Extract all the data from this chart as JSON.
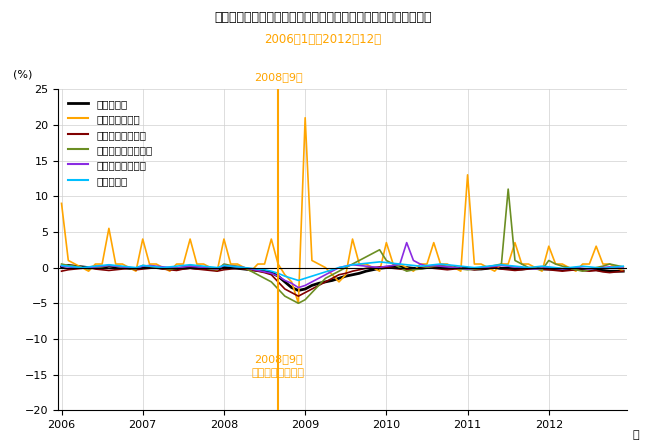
{
  "title": "《参考》主な産業別現金給与総額（前年同月比）　就業形態別計",
  "subtitle": "2006年1月～2012年12月",
  "ylabel": "(%)",
  "xlabel_suffix": "年",
  "ylim": [
    -20.0,
    25.0
  ],
  "yticks": [
    -20.0,
    -15.0,
    -10.0,
    -5.0,
    0.0,
    5.0,
    10.0,
    15.0,
    20.0,
    25.0
  ],
  "vline_label_top": "2008年9月",
  "vline_label_bottom": "リーマンショック",
  "vline_color": "#FFA500",
  "series_colors": [
    "#000000",
    "#FFA500",
    "#800000",
    "#6B8E23",
    "#8A2BE2",
    "#00BFFF"
  ],
  "series_names": [
    "調査産業計",
    "金融業，保険業",
    "飲食サービス業等",
    "生活関連サービス等",
    "教育，学習支援業",
    "医療，福祉"
  ],
  "background_color": "#ffffff",
  "data": {
    "調査産業計": [
      0.1,
      0.3,
      0.2,
      0.1,
      0.0,
      0.1,
      0.0,
      0.2,
      0.1,
      0.0,
      -0.1,
      -0.2,
      0.1,
      0.1,
      0.0,
      -0.1,
      -0.1,
      -0.2,
      -0.1,
      0.0,
      -0.1,
      -0.1,
      -0.2,
      -0.3,
      0.1,
      0.0,
      -0.1,
      -0.2,
      -0.3,
      -0.4,
      -0.5,
      -0.7,
      -1.2,
      -2.0,
      -2.8,
      -3.2,
      -3.0,
      -2.5,
      -2.2,
      -2.0,
      -1.8,
      -1.5,
      -1.2,
      -1.0,
      -0.8,
      -0.5,
      -0.3,
      -0.1,
      0.0,
      0.1,
      0.1,
      0.0,
      -0.1,
      -0.1,
      0.0,
      0.1,
      0.1,
      0.0,
      0.0,
      -0.1,
      -0.1,
      -0.2,
      -0.2,
      -0.1,
      0.0,
      -0.1,
      -0.1,
      -0.2,
      -0.2,
      -0.1,
      -0.1,
      -0.2,
      -0.2,
      -0.2,
      -0.3,
      -0.2,
      -0.2,
      -0.3,
      -0.3,
      -0.3,
      -0.4,
      -0.5,
      -0.5,
      -0.5
    ],
    "金融業，保険業": [
      9.0,
      1.0,
      0.5,
      0.0,
      -0.5,
      0.5,
      0.5,
      5.5,
      0.5,
      0.5,
      0.0,
      -0.5,
      4.0,
      0.5,
      0.5,
      0.0,
      -0.5,
      0.5,
      0.5,
      4.0,
      0.5,
      0.5,
      0.0,
      -0.5,
      4.0,
      0.5,
      0.5,
      0.0,
      -0.5,
      0.5,
      0.5,
      4.0,
      0.5,
      -1.0,
      -2.0,
      -5.0,
      21.0,
      1.0,
      0.5,
      0.0,
      -1.0,
      -2.0,
      -1.0,
      4.0,
      0.5,
      0.5,
      0.0,
      -0.5,
      3.5,
      0.5,
      0.5,
      0.0,
      -0.5,
      0.5,
      0.5,
      3.5,
      0.5,
      0.5,
      0.0,
      -0.5,
      13.0,
      0.5,
      0.5,
      0.0,
      -0.5,
      0.5,
      0.5,
      3.5,
      0.5,
      0.5,
      0.0,
      -0.5,
      3.0,
      0.5,
      0.5,
      0.0,
      -0.5,
      0.5,
      0.5,
      3.0,
      0.5,
      0.5,
      0.0,
      -0.5
    ],
    "飲食サービス業等": [
      -0.5,
      -0.3,
      -0.2,
      -0.1,
      0.0,
      -0.2,
      -0.3,
      -0.4,
      -0.3,
      -0.2,
      -0.1,
      -0.3,
      -0.2,
      -0.1,
      0.0,
      -0.2,
      -0.3,
      -0.4,
      -0.2,
      -0.1,
      -0.2,
      -0.3,
      -0.4,
      -0.5,
      -0.3,
      -0.2,
      -0.1,
      -0.2,
      -0.3,
      -0.5,
      -0.7,
      -1.0,
      -2.0,
      -3.0,
      -3.5,
      -4.0,
      -3.5,
      -3.0,
      -2.5,
      -2.0,
      -1.5,
      -1.0,
      -0.8,
      -0.5,
      -0.3,
      -0.1,
      0.0,
      0.1,
      0.0,
      -0.1,
      -0.2,
      -0.3,
      -0.2,
      -0.1,
      0.0,
      -0.1,
      -0.2,
      -0.3,
      -0.2,
      -0.1,
      -0.2,
      -0.3,
      -0.2,
      -0.1,
      0.0,
      -0.2,
      -0.3,
      -0.4,
      -0.3,
      -0.2,
      -0.1,
      -0.2,
      -0.3,
      -0.4,
      -0.5,
      -0.4,
      -0.3,
      -0.4,
      -0.5,
      -0.4,
      -0.6,
      -0.7,
      -0.6,
      -0.5
    ],
    "生活関連サービス等": [
      0.5,
      0.3,
      0.2,
      0.0,
      -0.2,
      0.0,
      0.1,
      0.3,
      0.2,
      0.0,
      -0.1,
      -0.2,
      0.3,
      0.2,
      0.1,
      -0.1,
      -0.2,
      -0.1,
      0.1,
      0.3,
      0.2,
      0.0,
      -0.2,
      -0.3,
      0.5,
      0.3,
      0.2,
      0.0,
      -0.5,
      -1.0,
      -1.5,
      -2.0,
      -3.0,
      -4.0,
      -4.5,
      -5.0,
      -4.5,
      -3.5,
      -2.5,
      -1.5,
      -1.0,
      -0.5,
      0.0,
      0.5,
      1.0,
      1.5,
      2.0,
      2.5,
      1.0,
      0.5,
      0.0,
      -0.5,
      -0.3,
      -0.2,
      0.0,
      0.2,
      0.3,
      0.2,
      0.0,
      -0.2,
      -0.3,
      -0.2,
      -0.1,
      0.1,
      0.3,
      0.5,
      11.0,
      1.0,
      0.5,
      0.0,
      -0.2,
      -0.3,
      1.0,
      0.5,
      0.2,
      0.0,
      -0.3,
      -0.5,
      -0.3,
      0.0,
      0.2,
      0.5,
      0.3,
      0.1
    ],
    "教育，学習支援業": [
      0.2,
      0.1,
      0.0,
      -0.1,
      0.0,
      0.1,
      0.2,
      0.3,
      0.2,
      0.1,
      0.0,
      -0.1,
      0.2,
      0.3,
      0.2,
      0.1,
      0.0,
      -0.1,
      0.1,
      0.2,
      0.1,
      0.0,
      -0.1,
      -0.2,
      0.3,
      0.2,
      0.1,
      0.0,
      -0.2,
      -0.4,
      -0.6,
      -0.8,
      -1.2,
      -1.8,
      -2.2,
      -2.8,
      -2.5,
      -2.0,
      -1.5,
      -1.0,
      -0.5,
      0.0,
      0.2,
      0.4,
      0.3,
      0.2,
      0.1,
      0.0,
      0.2,
      0.3,
      0.5,
      3.5,
      1.0,
      0.5,
      0.2,
      0.3,
      0.2,
      0.1,
      0.0,
      -0.1,
      -0.2,
      -0.1,
      0.0,
      0.1,
      0.2,
      0.3,
      0.2,
      0.1,
      0.0,
      -0.1,
      -0.2,
      -0.1,
      0.0,
      -0.1,
      -0.2,
      -0.1,
      0.0,
      -0.1,
      -0.2,
      -0.1,
      0.0,
      0.1,
      0.0,
      -0.1
    ],
    "医療，福祉": [
      0.3,
      0.2,
      0.1,
      0.0,
      0.1,
      0.2,
      0.3,
      0.4,
      0.3,
      0.2,
      0.1,
      0.0,
      0.3,
      0.2,
      0.1,
      0.0,
      0.1,
      0.2,
      0.3,
      0.4,
      0.3,
      0.2,
      0.1,
      0.0,
      0.3,
      0.2,
      0.1,
      0.0,
      -0.1,
      -0.2,
      -0.3,
      -0.5,
      -0.8,
      -1.2,
      -1.5,
      -1.8,
      -1.5,
      -1.2,
      -0.9,
      -0.6,
      -0.3,
      0.0,
      0.2,
      0.4,
      0.5,
      0.6,
      0.7,
      0.8,
      0.7,
      0.6,
      0.5,
      0.4,
      0.3,
      0.2,
      0.3,
      0.4,
      0.5,
      0.4,
      0.3,
      0.2,
      0.1,
      0.0,
      0.1,
      0.2,
      0.3,
      0.4,
      0.3,
      0.2,
      0.1,
      0.0,
      0.1,
      0.2,
      0.1,
      0.0,
      -0.1,
      0.0,
      0.1,
      0.2,
      0.1,
      0.0,
      -0.1,
      0.0,
      0.1,
      0.2
    ]
  }
}
